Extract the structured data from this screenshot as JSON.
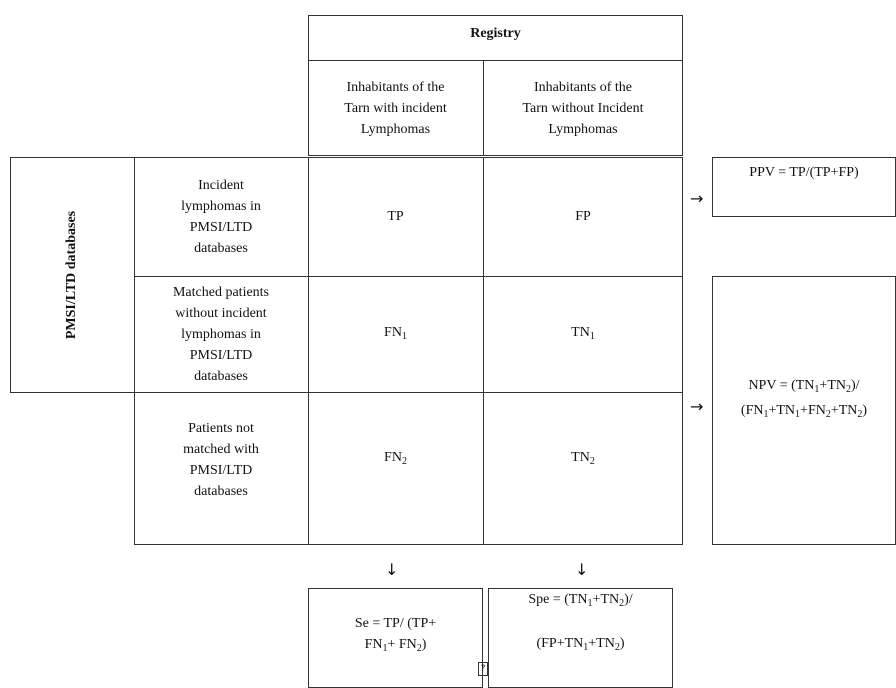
{
  "registry": {
    "title": "Registry",
    "col_with": [
      "Inhabitants of the",
      "Tarn with incident",
      "Lymphomas"
    ],
    "col_without": [
      "Inhabitants of the",
      "Tarn without Incident",
      "Lymphomas"
    ]
  },
  "pmsi_label": "PMSI/LTD databases",
  "rows": [
    {
      "label": [
        "Incident",
        "lymphomas in",
        "PMSI/LTD",
        "databases"
      ],
      "c1": "TP",
      "c2": "FP"
    },
    {
      "label": [
        "Matched patients",
        "without incident",
        "lymphomas in",
        "PMSI/LTD",
        "databases"
      ],
      "c1_main": "FN",
      "c1_sub": "1",
      "c2_main": "TN",
      "c2_sub": "1"
    },
    {
      "label": [
        "Patients not",
        "matched with",
        "PMSI/LTD",
        "databases"
      ],
      "c1_main": "FN",
      "c1_sub": "2",
      "c2_main": "TN",
      "c2_sub": "2"
    }
  ],
  "ppv": {
    "text": "PPV = TP/(TP+FP)"
  },
  "npv": {
    "line1": {
      "pre": "NPV = (TN",
      "s1": "1",
      "mid": "+TN",
      "s2": "2",
      "post": ")/"
    },
    "line2": {
      "a": "(FN",
      "s1": "1",
      "b": "+TN",
      "s2": "1",
      "c": "+FN",
      "s3": "2",
      "d": "+TN",
      "s4": "2",
      "e": ")"
    }
  },
  "se": {
    "line1": "Se = TP/ (TP+",
    "line2": {
      "a": "FN",
      "s1": "1",
      "b": "+ FN",
      "s2": "2",
      "c": ")"
    }
  },
  "spe": {
    "line1": {
      "a": "Spe = (TN",
      "s1": "1",
      "b": "+TN",
      "s2": "2",
      "c": ")/"
    },
    "line2": {
      "a": "(FP+TN",
      "s1": "1",
      "b": "+TN",
      "s2": "2",
      "c": ")"
    }
  },
  "arrows": {
    "right": "→",
    "down": "↓"
  },
  "icons": {
    "broken_glyph": "?"
  }
}
